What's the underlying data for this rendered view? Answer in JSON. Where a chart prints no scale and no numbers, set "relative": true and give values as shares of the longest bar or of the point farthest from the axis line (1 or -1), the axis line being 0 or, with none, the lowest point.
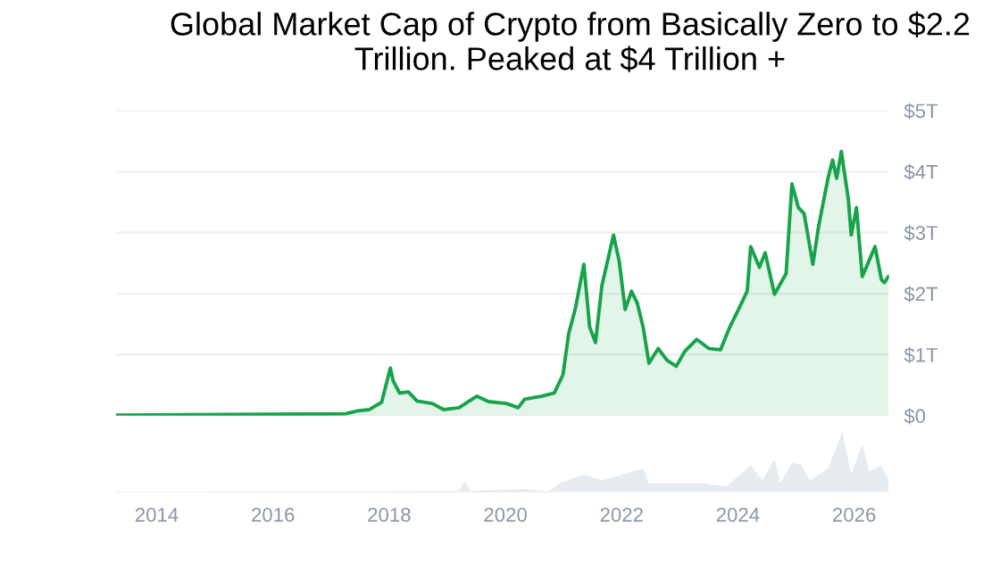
{
  "chart_data": [
    {
      "type": "area",
      "title": "Global Market Cap of Crypto from Basically Zero to $2.2 Trillion. Peaked at $4 Trillion +",
      "x": [
        2013.31,
        2017.25,
        2017.46,
        2017.66,
        2017.87,
        2018.02,
        2018.07,
        2018.18,
        2018.33,
        2018.48,
        2018.74,
        2018.94,
        2019.2,
        2019.51,
        2019.71,
        2020.02,
        2020.22,
        2020.33,
        2020.63,
        2020.84,
        2020.99,
        2021.09,
        2021.2,
        2021.35,
        2021.45,
        2021.55,
        2021.66,
        2021.86,
        2021.96,
        2022.06,
        2022.17,
        2022.27,
        2022.37,
        2022.47,
        2022.63,
        2022.78,
        2022.94,
        2023.09,
        2023.29,
        2023.5,
        2023.7,
        2023.86,
        2024.01,
        2024.16,
        2024.22,
        2024.37,
        2024.47,
        2024.63,
        2024.83,
        2024.93,
        2025.04,
        2025.14,
        2025.29,
        2025.39,
        2025.55,
        2025.63,
        2025.7,
        2025.78,
        2025.9,
        2025.95,
        2026.04,
        2026.14,
        2026.36,
        2026.47,
        2026.52,
        2026.59
      ],
      "series": [
        {
          "color": "#16a34a",
          "values": [
            0.01,
            0.03,
            0.08,
            0.1,
            0.22,
            0.78,
            0.57,
            0.37,
            0.39,
            0.24,
            0.2,
            0.1,
            0.13,
            0.32,
            0.23,
            0.2,
            0.13,
            0.27,
            0.32,
            0.37,
            0.67,
            1.35,
            1.74,
            2.48,
            1.45,
            1.2,
            2.13,
            2.96,
            2.52,
            1.74,
            2.04,
            1.84,
            1.45,
            0.86,
            1.1,
            0.91,
            0.81,
            1.06,
            1.25,
            1.1,
            1.08,
            1.45,
            1.74,
            2.04,
            2.77,
            2.43,
            2.67,
            1.99,
            2.33,
            3.8,
            3.41,
            3.31,
            2.48,
            3.11,
            3.89,
            4.19,
            3.89,
            4.33,
            3.55,
            2.96,
            3.41,
            2.28,
            2.77,
            2.23,
            2.18,
            2.28
          ]
        }
      ],
      "xlim": [
        2013.3,
        2026.6
      ],
      "ylim": [
        0,
        5
      ],
      "yticks": [
        {
          "value": 0,
          "label": "$0"
        },
        {
          "value": 1,
          "label": "$1T"
        },
        {
          "value": 2,
          "label": "$2T"
        },
        {
          "value": 3,
          "label": "$3T"
        },
        {
          "value": 4,
          "label": "$4T"
        },
        {
          "value": 5,
          "label": "$5T"
        }
      ],
      "grid": "y",
      "tick_labels": "y"
    },
    {
      "type": "area",
      "relative": true,
      "x": [
        2013.31,
        2019.2,
        2019.3,
        2019.4,
        2020.33,
        2020.74,
        2020.94,
        2021.35,
        2021.66,
        2022.37,
        2022.47,
        2023.4,
        2023.81,
        2024.22,
        2024.42,
        2024.63,
        2024.73,
        2024.93,
        2025.09,
        2025.24,
        2025.55,
        2025.8,
        2025.95,
        2026.14,
        2026.26,
        2026.47,
        2026.59
      ],
      "series": [
        {
          "color": "#e6ebf0",
          "values": [
            0,
            0.02,
            0.18,
            0.03,
            0.05,
            0.02,
            0.15,
            0.3,
            0.2,
            0.4,
            0.15,
            0.15,
            0.1,
            0.45,
            0.2,
            0.55,
            0.15,
            0.5,
            0.45,
            0.2,
            0.4,
            1.0,
            0.3,
            0.8,
            0.35,
            0.45,
            0.2
          ]
        }
      ],
      "xlim": [
        2013.3,
        2026.6
      ],
      "xticks": [
        2014,
        2016,
        2018,
        2020,
        2022,
        2024,
        2026
      ],
      "tick_labels": "x"
    }
  ]
}
